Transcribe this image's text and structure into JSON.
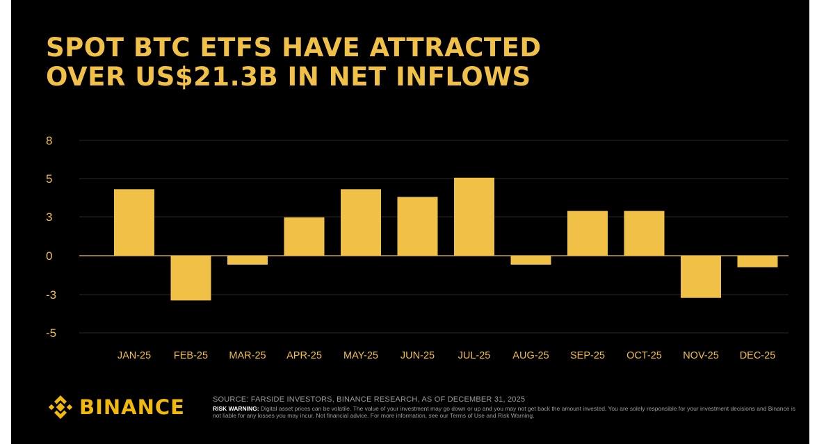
{
  "title": {
    "line1": "SPOT BTC ETFS HAVE ATTRACTED",
    "line2": "OVER US$21.3B IN NET INFLOWS"
  },
  "colors": {
    "bar": "#f0c146",
    "title": "#f0c146",
    "axis_text": "#f0c146",
    "zero_line": "#f0c146",
    "grid": "#2a2a2a",
    "background": "#000000",
    "logo": "#f0b90b"
  },
  "chart_data": {
    "type": "bar",
    "title": "SPOT BTC ETFS HAVE ATTRACTED OVER US$21.3B IN NET INFLOWS",
    "xlabel": "",
    "ylabel": "",
    "categories": [
      "JAN-25",
      "FEB-25",
      "MAR-25",
      "APR-25",
      "MAY-25",
      "JUN-25",
      "JUL-25",
      "AUG-25",
      "SEP-25",
      "OCT-25",
      "NOV-25",
      "DEC-25"
    ],
    "values": [
      5.2,
      -3.5,
      -0.7,
      3.0,
      5.2,
      4.6,
      6.1,
      -0.7,
      3.5,
      3.5,
      -3.3,
      -0.9
    ],
    "yticks": [
      8,
      5,
      3,
      0,
      -3,
      -5
    ],
    "ytick_labels": [
      "8",
      "5",
      "3",
      "0",
      "-3",
      "-5"
    ],
    "ylim": [
      -5,
      7.5
    ],
    "grid": true,
    "legend": "none"
  },
  "footer": {
    "source": "SOURCE: FARSIDE INVESTORS, BINANCE RESEARCH, AS OF DECEMBER 31, 2025",
    "risk_label": "RISK WARNING:",
    "risk_text": " Digital asset prices can be volatile. The value of your investment may go down or up and you may not get back the amount invested. You are solely responsible for your investment decisions and Binance is not liable for any losses you may incur. Not financial advice. For more information, see our Terms of Use and Risk Warning."
  },
  "logo": {
    "text": "BINANCE",
    "icon": "binance-logo-icon"
  }
}
